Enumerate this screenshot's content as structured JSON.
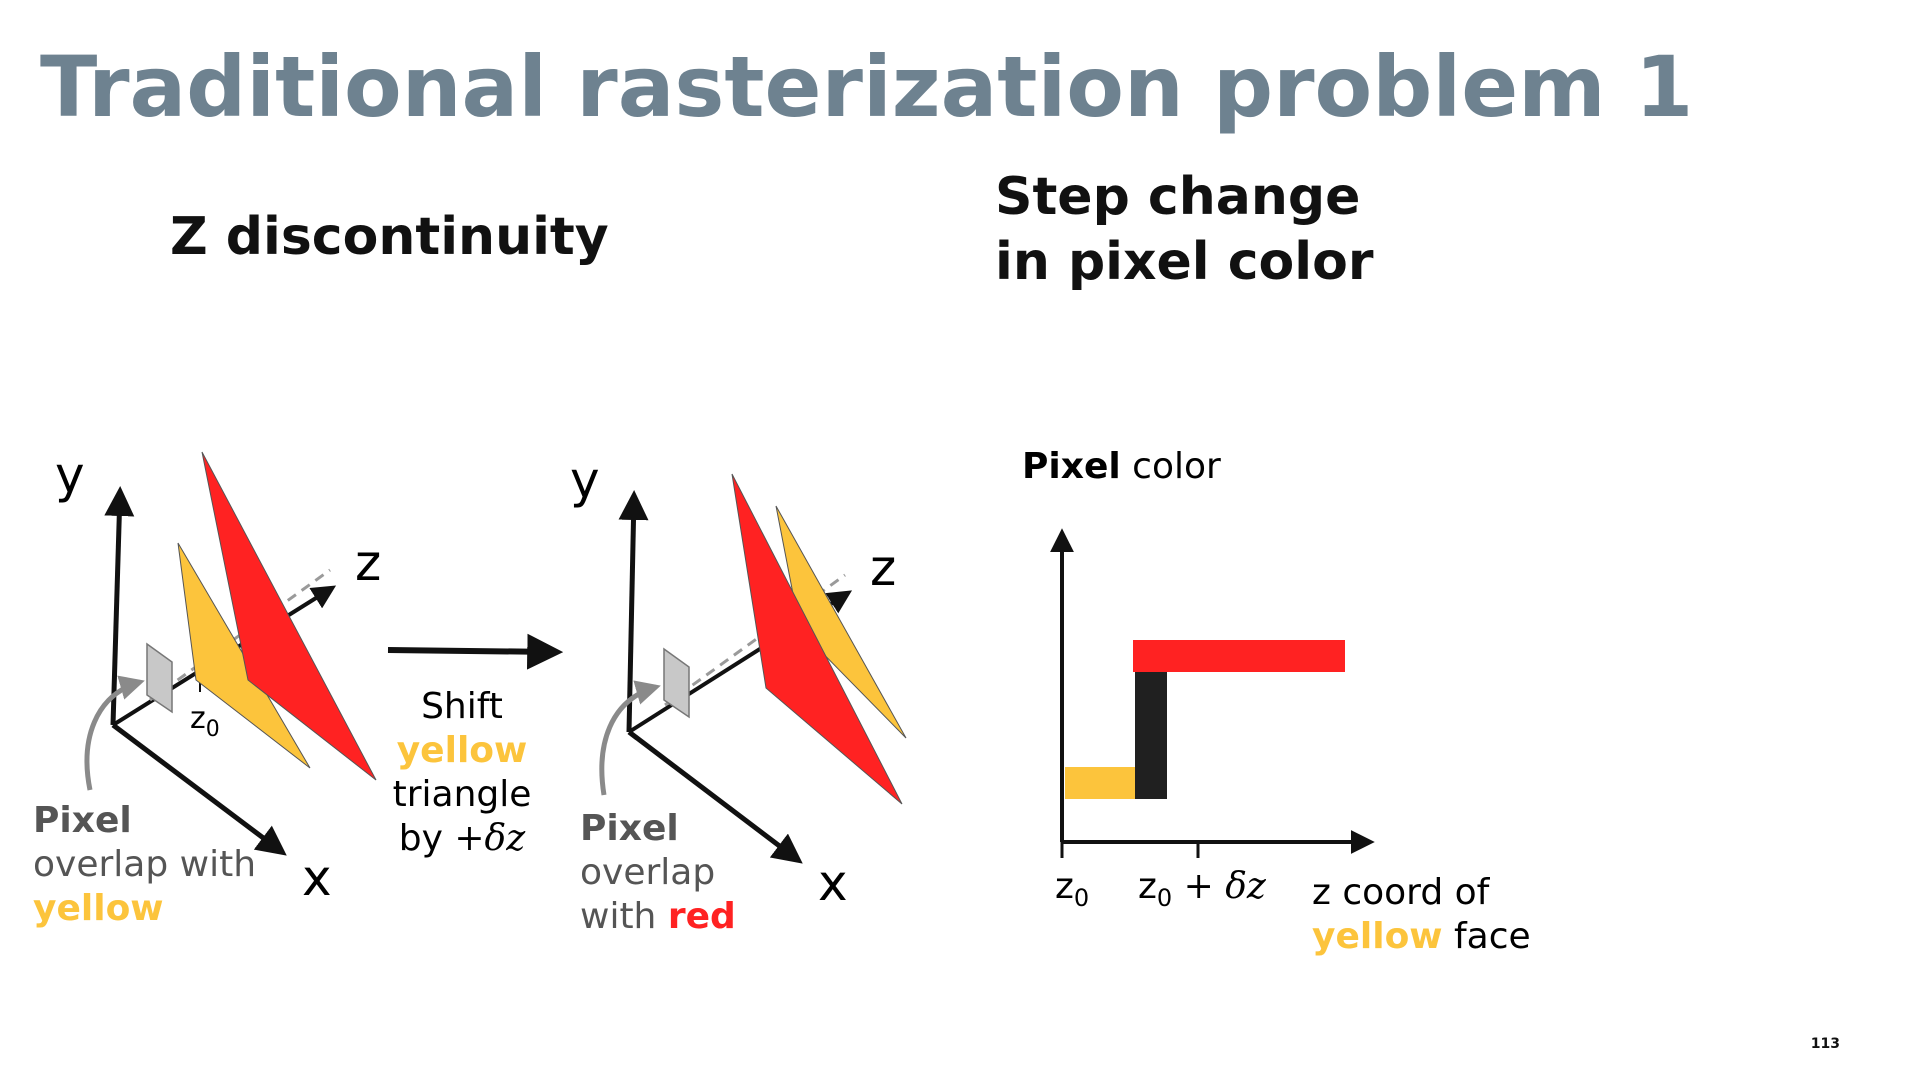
{
  "title": "Traditional rasterization problem 1",
  "subheads": {
    "left": "Z discontinuity",
    "right_line1": "Step change",
    "right_line2": "in pixel color"
  },
  "left_diagram": {
    "axis_y": "y",
    "axis_z": "z",
    "axis_x": "x",
    "z0_main": "z",
    "z0_sub": "0",
    "caption_bold": "Pixel",
    "caption_line2": "overlap with",
    "caption_highlight": "yellow"
  },
  "shift_label": {
    "line1": "Shift",
    "line2_highlight": "yellow",
    "line3": "triangle",
    "line4_prefix": "by ",
    "line4_math": "+δz"
  },
  "middle_diagram": {
    "axis_y": "y",
    "axis_z": "z",
    "axis_x": "x",
    "caption_bold": "Pixel",
    "caption_line2": "overlap",
    "caption_line3_prefix": "with ",
    "caption_highlight": "red"
  },
  "step_chart": {
    "ylabel_bold": "Pixel",
    "ylabel_rest": " color",
    "tick1_main": "z",
    "tick1_sub": "0",
    "tick2_main": "z",
    "tick2_sub": "0",
    "tick2_rest": " + δz",
    "xlabel_line1": "z coord of",
    "xlabel_highlight": "yellow",
    "xlabel_rest": " face"
  },
  "colors": {
    "title": "#6e8290",
    "yellow": "#fcc43c",
    "red": "#ff2222",
    "pixel_gray": "#c8c8c8",
    "step_black": "#202020"
  },
  "slide_number": "113"
}
